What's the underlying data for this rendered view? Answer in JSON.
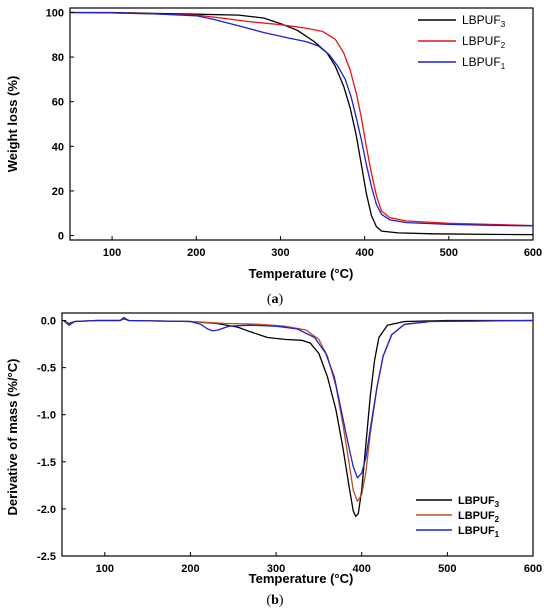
{
  "chart_data": [
    {
      "type": "line",
      "panel_label": "a",
      "xlabel": "Temperature (°C)",
      "ylabel": "Weight loss (%)",
      "xlim": [
        50,
        600
      ],
      "ylim": [
        -2,
        102
      ],
      "xticks": [
        100,
        200,
        300,
        400,
        500,
        600
      ],
      "yticks": [
        0,
        20,
        40,
        60,
        80,
        100
      ],
      "grid": false,
      "legend_position": "top-right",
      "series": [
        {
          "name": "LBPUF",
          "subscript": "3",
          "color": "#000000",
          "points": [
            [
              50,
              100
            ],
            [
              100,
              100
            ],
            [
              150,
              99.6
            ],
            [
              200,
              99.2
            ],
            [
              250,
              98.8
            ],
            [
              280,
              97.5
            ],
            [
              300,
              95
            ],
            [
              320,
              92
            ],
            [
              340,
              87
            ],
            [
              355,
              82
            ],
            [
              365,
              76
            ],
            [
              375,
              67
            ],
            [
              383,
              57
            ],
            [
              390,
              45
            ],
            [
              396,
              32
            ],
            [
              402,
              19
            ],
            [
              408,
              9
            ],
            [
              414,
              4
            ],
            [
              420,
              2
            ],
            [
              440,
              1.2
            ],
            [
              480,
              0.8
            ],
            [
              550,
              0.5
            ],
            [
              600,
              0.4
            ]
          ]
        },
        {
          "name": "LBPUF",
          "subscript": "2",
          "color": "#e8141a",
          "points": [
            [
              50,
              100
            ],
            [
              100,
              99.8
            ],
            [
              150,
              99.4
            ],
            [
              200,
              98.8
            ],
            [
              230,
              97.5
            ],
            [
              260,
              96
            ],
            [
              300,
              94.5
            ],
            [
              330,
              93
            ],
            [
              350,
              91.5
            ],
            [
              365,
              88
            ],
            [
              375,
              82
            ],
            [
              383,
              74
            ],
            [
              390,
              64
            ],
            [
              396,
              53
            ],
            [
              402,
              40
            ],
            [
              408,
              28
            ],
            [
              414,
              18
            ],
            [
              420,
              11
            ],
            [
              430,
              8
            ],
            [
              450,
              6.5
            ],
            [
              500,
              5.5
            ],
            [
              550,
              5
            ],
            [
              600,
              4.5
            ]
          ]
        },
        {
          "name": "LBPUF",
          "subscript": "1",
          "color": "#2020c8",
          "points": [
            [
              50,
              100
            ],
            [
              100,
              99.8
            ],
            [
              150,
              99.4
            ],
            [
              200,
              98.5
            ],
            [
              220,
              97
            ],
            [
              250,
              94
            ],
            [
              280,
              91
            ],
            [
              310,
              88.5
            ],
            [
              330,
              87
            ],
            [
              345,
              85
            ],
            [
              358,
              81
            ],
            [
              368,
              76
            ],
            [
              377,
              70
            ],
            [
              384,
              62
            ],
            [
              390,
              53
            ],
            [
              396,
              43
            ],
            [
              402,
              32
            ],
            [
              408,
              22
            ],
            [
              414,
              14
            ],
            [
              420,
              9.5
            ],
            [
              430,
              7
            ],
            [
              450,
              5.8
            ],
            [
              500,
              5
            ],
            [
              550,
              4.6
            ],
            [
              600,
              4.3
            ]
          ]
        }
      ]
    },
    {
      "type": "line",
      "panel_label": "b",
      "xlabel": "Temperature (°C)",
      "ylabel": "Derivative of mass (%/°C)",
      "xlim": [
        50,
        600
      ],
      "ylim": [
        -2.5,
        0.08
      ],
      "xticks": [
        100,
        200,
        300,
        400,
        500,
        600
      ],
      "yticks": [
        0.0,
        -0.5,
        -1.0,
        -1.5,
        -2.0,
        -2.5
      ],
      "ytick_labels": [
        "0.0",
        "-0.5",
        "-1.0",
        "-1.5",
        "-2.0",
        "-2.5"
      ],
      "grid": false,
      "legend_position": "bottom-right",
      "series": [
        {
          "name": "LBPUF",
          "subscript": "3",
          "color": "#000000",
          "points": [
            [
              52,
              0
            ],
            [
              58,
              -0.05
            ],
            [
              65,
              -0.01
            ],
            [
              90,
              0
            ],
            [
              118,
              0
            ],
            [
              122,
              0.03
            ],
            [
              128,
              0
            ],
            [
              200,
              -0.01
            ],
            [
              230,
              -0.03
            ],
            [
              255,
              -0.07
            ],
            [
              270,
              -0.12
            ],
            [
              290,
              -0.18
            ],
            [
              310,
              -0.2
            ],
            [
              330,
              -0.21
            ],
            [
              340,
              -0.24
            ],
            [
              350,
              -0.35
            ],
            [
              360,
              -0.6
            ],
            [
              370,
              -0.95
            ],
            [
              378,
              -1.35
            ],
            [
              385,
              -1.75
            ],
            [
              390,
              -2.02
            ],
            [
              393,
              -2.08
            ],
            [
              396,
              -2.05
            ],
            [
              400,
              -1.8
            ],
            [
              405,
              -1.3
            ],
            [
              410,
              -0.8
            ],
            [
              415,
              -0.42
            ],
            [
              420,
              -0.18
            ],
            [
              430,
              -0.05
            ],
            [
              450,
              -0.01
            ],
            [
              500,
              0
            ],
            [
              600,
              0
            ]
          ]
        },
        {
          "name": "LBPUF",
          "subscript": "2",
          "color": "#b8501e",
          "points": [
            [
              52,
              0
            ],
            [
              58,
              -0.04
            ],
            [
              65,
              -0.01
            ],
            [
              90,
              0
            ],
            [
              118,
              0
            ],
            [
              122,
              0.02
            ],
            [
              128,
              0
            ],
            [
              200,
              -0.01
            ],
            [
              240,
              -0.03
            ],
            [
              280,
              -0.04
            ],
            [
              310,
              -0.06
            ],
            [
              335,
              -0.1
            ],
            [
              350,
              -0.2
            ],
            [
              360,
              -0.38
            ],
            [
              370,
              -0.7
            ],
            [
              378,
              -1.1
            ],
            [
              385,
              -1.5
            ],
            [
              390,
              -1.8
            ],
            [
              395,
              -1.92
            ],
            [
              400,
              -1.85
            ],
            [
              405,
              -1.6
            ],
            [
              410,
              -1.2
            ],
            [
              418,
              -0.7
            ],
            [
              425,
              -0.38
            ],
            [
              435,
              -0.15
            ],
            [
              450,
              -0.04
            ],
            [
              480,
              -0.01
            ],
            [
              600,
              0
            ]
          ]
        },
        {
          "name": "LBPUF",
          "subscript": "1",
          "color": "#2222cc",
          "points": [
            [
              52,
              0
            ],
            [
              58,
              -0.03
            ],
            [
              65,
              -0.01
            ],
            [
              90,
              0
            ],
            [
              118,
              0
            ],
            [
              122,
              0.02
            ],
            [
              128,
              0
            ],
            [
              200,
              -0.01
            ],
            [
              212,
              -0.04
            ],
            [
              220,
              -0.09
            ],
            [
              226,
              -0.11
            ],
            [
              232,
              -0.1
            ],
            [
              245,
              -0.06
            ],
            [
              270,
              -0.05
            ],
            [
              300,
              -0.06
            ],
            [
              325,
              -0.09
            ],
            [
              345,
              -0.18
            ],
            [
              358,
              -0.35
            ],
            [
              368,
              -0.6
            ],
            [
              376,
              -0.95
            ],
            [
              384,
              -1.3
            ],
            [
              390,
              -1.55
            ],
            [
              395,
              -1.67
            ],
            [
              400,
              -1.62
            ],
            [
              405,
              -1.45
            ],
            [
              410,
              -1.15
            ],
            [
              418,
              -0.7
            ],
            [
              425,
              -0.38
            ],
            [
              435,
              -0.15
            ],
            [
              450,
              -0.04
            ],
            [
              480,
              -0.01
            ],
            [
              600,
              0
            ]
          ]
        }
      ]
    }
  ]
}
